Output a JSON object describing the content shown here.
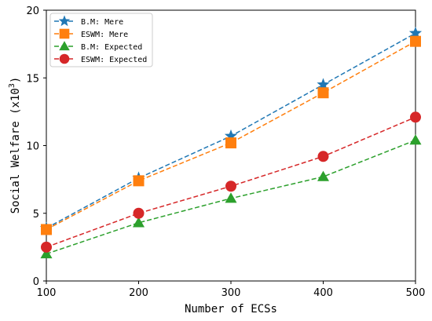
{
  "chart_data": {
    "type": "line",
    "x": [
      100,
      200,
      300,
      400,
      500
    ],
    "xlabel": "Number of ECSs",
    "ylabel_main": "Social Welfare (x10",
    "ylabel_exp": "3",
    "ylabel_close": ")",
    "xlim": [
      100,
      500
    ],
    "ylim": [
      0,
      20
    ],
    "xticks": [
      "100",
      "200",
      "300",
      "400",
      "500"
    ],
    "yticks": [
      "0",
      "5",
      "10",
      "15",
      "20"
    ],
    "grid": false,
    "legend_position": "top-left",
    "series": [
      {
        "name": "B.M: Mere",
        "color": "#1f77b4",
        "marker": "star",
        "dashed": true,
        "values": [
          3.9,
          7.6,
          10.7,
          14.5,
          18.3
        ]
      },
      {
        "name": "ESWM: Mere",
        "color": "#ff7f0e",
        "marker": "square",
        "dashed": true,
        "values": [
          3.8,
          7.4,
          10.2,
          13.9,
          17.7
        ]
      },
      {
        "name": "B.M: Expected",
        "color": "#2ca02c",
        "marker": "triangle",
        "dashed": true,
        "values": [
          2.0,
          4.3,
          6.1,
          7.7,
          10.4
        ]
      },
      {
        "name": "ESWM: Expected",
        "color": "#d62728",
        "marker": "circle",
        "dashed": true,
        "values": [
          2.5,
          5.0,
          7.0,
          9.2,
          12.1
        ]
      }
    ]
  }
}
